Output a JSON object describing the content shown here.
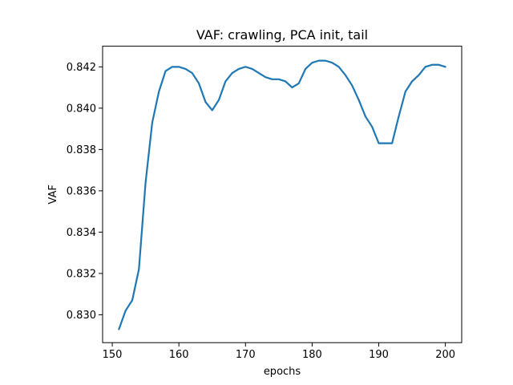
{
  "chart_data": {
    "type": "line",
    "title": "VAF: crawling, PCA init, tail",
    "xlabel": "epochs",
    "ylabel": "VAF",
    "xlim": [
      148.55,
      202.45
    ],
    "ylim": [
      0.82865,
      0.843
    ],
    "xticks": [
      150,
      160,
      170,
      180,
      190,
      200
    ],
    "xtick_labels": [
      "150",
      "160",
      "170",
      "180",
      "190",
      "200"
    ],
    "yticks": [
      0.83,
      0.832,
      0.834,
      0.836,
      0.838,
      0.84,
      0.842
    ],
    "ytick_labels": [
      "0.830",
      "0.832",
      "0.834",
      "0.836",
      "0.838",
      "0.840",
      "0.842"
    ],
    "grid": false,
    "series": [
      {
        "color": "#1f77b4",
        "x": [
          151,
          152,
          153,
          154,
          155,
          156,
          157,
          158,
          159,
          160,
          161,
          162,
          163,
          164,
          165,
          166,
          167,
          168,
          169,
          170,
          171,
          172,
          173,
          174,
          175,
          176,
          177,
          178,
          179,
          180,
          181,
          182,
          183,
          184,
          185,
          186,
          187,
          188,
          189,
          190,
          191,
          192,
          193,
          194,
          195,
          196,
          197,
          198,
          199,
          200
        ],
        "y": [
          0.8293,
          0.8302,
          0.8307,
          0.8322,
          0.8364,
          0.8393,
          0.8408,
          0.8418,
          0.842,
          0.842,
          0.8419,
          0.8417,
          0.8412,
          0.8403,
          0.8399,
          0.8404,
          0.8413,
          0.8417,
          0.8419,
          0.842,
          0.8419,
          0.8417,
          0.8415,
          0.8414,
          0.8414,
          0.8413,
          0.841,
          0.8412,
          0.8419,
          0.8422,
          0.8423,
          0.8423,
          0.8422,
          0.842,
          0.8416,
          0.8411,
          0.8404,
          0.8396,
          0.8391,
          0.8383,
          0.8383,
          0.8383,
          0.8396,
          0.8408,
          0.8413,
          0.8416,
          0.842,
          0.8421,
          0.8421,
          0.842
        ]
      }
    ]
  }
}
